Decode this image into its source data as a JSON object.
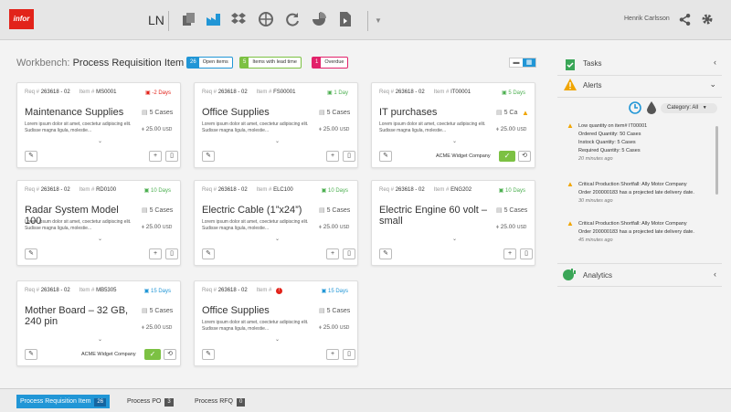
{
  "topbar": {
    "logo": "infor",
    "app": "LN",
    "user": "Henrik Carlsson",
    "icons": [
      "documents-icon",
      "factory-icon",
      "dropbox-icon",
      "globe-icon",
      "refresh-icon",
      "pie-chart-icon",
      "pdf-file-icon",
      "share-icon",
      "gear-icon"
    ]
  },
  "workbench": {
    "prefix": "Workbench:",
    "title": "Process Requisition Item",
    "badges": [
      {
        "count": "26",
        "label": "Open items",
        "color": "#2196d6"
      },
      {
        "count": "5",
        "label": "Items with lead time",
        "color": "#7cc143"
      },
      {
        "count": "1",
        "label": "Overdue",
        "color": "#e2236b"
      }
    ]
  },
  "cards": [
    {
      "req": "263618 - 02",
      "item": "MS0001",
      "days": "-2 Days",
      "days_color": "#e2231a",
      "title": "Maintenance Supplies",
      "qty": "5 Cases",
      "price": "25.00",
      "currency": "USD",
      "desc": "Lorem ipsum dolor sit amet, coectetur adipiscing elit. Sudisse magna ligula, molestie...",
      "vendor": ""
    },
    {
      "req": "263618 - 02",
      "item": "FS00001",
      "days": "1 Day",
      "days_color": "#4caf50",
      "title": "Office Supplies",
      "qty": "5 Cases",
      "price": "25.00",
      "currency": "USD",
      "desc": "Lorem ipsum dolor sit amet, coectetur adipiscing elit. Sudisse magna ligula, molestie...",
      "vendor": ""
    },
    {
      "req": "263618 - 02",
      "item": "IT00001",
      "days": "5 Days",
      "days_color": "#4caf50",
      "title": "IT purchases",
      "qty": "5 Ca",
      "price": "25.00",
      "currency": "USD",
      "desc": "Lorem ipsum dolor sit amet, coectetur adipiscing elit. Sudisse magna ligula, molestie...",
      "vendor": "ACME Widget Company"
    },
    {
      "req": "263618 - 02",
      "item": "RD0100",
      "days": "10 Days",
      "days_color": "#4caf50",
      "title": "Radar System Model 100",
      "qty": "5 Cases",
      "price": "25.00",
      "currency": "USD",
      "desc": "Lorem ipsum dolor sit amet, coectetur adipiscing elit. Sudisse magna ligula, molestie...",
      "vendor": ""
    },
    {
      "req": "263618 - 02",
      "item": "ELC100",
      "days": "10 Days",
      "days_color": "#4caf50",
      "title": "Electric Cable (1”x24”)",
      "qty": "5 Cases",
      "price": "25.00",
      "currency": "USD",
      "desc": "Lorem ipsum dolor sit amet, coectetur adipiscing elit. Sudisse magna ligula, molestie...",
      "vendor": ""
    },
    {
      "req": "263618 - 02",
      "item": "ENG202",
      "days": "10 Days",
      "days_color": "#4caf50",
      "title": "Electric Engine 60 volt – small",
      "qty": "5 Cases",
      "price": "25.00",
      "currency": "USD",
      "desc": "",
      "vendor": ""
    },
    {
      "req": "263618 - 02",
      "item": "MB5305",
      "days": "15 Days",
      "days_color": "#2196d6",
      "title": "Mother Board – 32 GB, 240 pin",
      "qty": "5 Cases",
      "price": "25.00",
      "currency": "USD",
      "desc": "",
      "vendor": "ACME Widget Company"
    },
    {
      "req": "263618 - 02",
      "item": "",
      "days": "15 Days",
      "days_color": "#2196d6",
      "title": "Office Supplies",
      "qty": "5 Cases",
      "price": "25.00",
      "currency": "USD",
      "desc": "Lorem ipsum dolor sit amet, coectetur adipiscing elit. Sudisse magna ligula, molestie...",
      "vendor": ""
    }
  ],
  "labels": {
    "req": "Req #",
    "item": "Item #"
  },
  "panel": {
    "tasks": "Tasks",
    "alerts": "Alerts",
    "analytics": "Analytics",
    "category": "Category: All",
    "alert_items": [
      {
        "lines": [
          "Low quantity on item# IT00001",
          "Ordered Quantity: 50 Cases",
          "Instock Quantity: 5 Cases",
          "Required Quantity: 5 Cases"
        ],
        "time": "20 minutes ago"
      },
      {
        "lines": [
          "Critical Production Shortfall: Ally Motor Company",
          "Order 200000183 has a projected late delivery date."
        ],
        "time": "30 minutes ago"
      },
      {
        "lines": [
          "Critical Production Shortfall: Ally Motor Company",
          "Order 200000183 has a projected late delivery date."
        ],
        "time": "45 minutes ago"
      }
    ]
  },
  "bottom_tabs": [
    {
      "label": "Process Requisition Item",
      "count": "26",
      "active": true
    },
    {
      "label": "Process PO",
      "count": "3",
      "active": false
    },
    {
      "label": "Process RFQ",
      "count": "0",
      "active": false
    }
  ]
}
